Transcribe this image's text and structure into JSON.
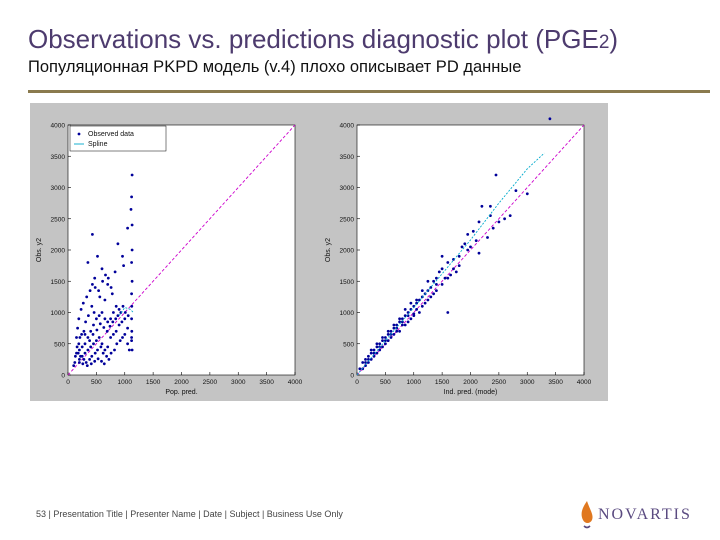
{
  "slide": {
    "title_main": "Observations vs. predictions diagnostic plot (PGE",
    "title_num": "2",
    "title_end": ")",
    "subtitle": "Популяционная PKPD модель (v.4) плохо описывает PD данные",
    "footer": "53 | Presentation Title | Presenter Name | Date | Subject | Business Use Only",
    "logo_text": "NOVARTIS"
  },
  "colors": {
    "points": "#00009a",
    "identity": "#cc00cc",
    "spline": "#00aacc",
    "panel": "#c4c4c4",
    "title": "#4d3b6e",
    "rule": "#8a7a4e",
    "logo": "#5a4a80",
    "logo_flame": "#e07820"
  },
  "chart_data": [
    {
      "type": "scatter",
      "xlabel": "Pop. pred.",
      "ylabel": "Obs. y2",
      "xlim": [
        0,
        4000
      ],
      "ylim": [
        0,
        4000
      ],
      "xticks": [
        0,
        500,
        1000,
        1500,
        2000,
        2500,
        3000,
        3500,
        4000
      ],
      "yticks": [
        0,
        500,
        1000,
        1500,
        2000,
        2500,
        3000,
        3500,
        4000
      ],
      "legend": {
        "position": "top-left",
        "entries": [
          "Observed data",
          "Spline"
        ]
      },
      "identity_line": true,
      "spline": [
        [
          900,
          950
        ],
        [
          1000,
          1080
        ],
        [
          1100,
          1050
        ],
        [
          1150,
          1000
        ]
      ],
      "series": [
        {
          "name": "Observed data",
          "points": [
            [
              430,
              2250
            ],
            [
              1050,
              2350
            ],
            [
              1130,
              3200
            ],
            [
              1120,
              2850
            ],
            [
              1110,
              2650
            ],
            [
              1130,
              2400
            ],
            [
              1130,
              2000
            ],
            [
              1120,
              1800
            ],
            [
              1130,
              1500
            ],
            [
              1120,
              1300
            ],
            [
              1125,
              1100
            ],
            [
              1120,
              900
            ],
            [
              1125,
              700
            ],
            [
              1120,
              550
            ],
            [
              1130,
              400
            ],
            [
              1120,
              600
            ],
            [
              980,
              1750
            ],
            [
              960,
              1900
            ],
            [
              880,
              2100
            ],
            [
              830,
              1650
            ],
            [
              600,
              1700
            ],
            [
              520,
              1900
            ],
            [
              470,
              1550
            ],
            [
              350,
              1800
            ],
            [
              700,
              1450
            ],
            [
              780,
              1300
            ],
            [
              650,
              1200
            ],
            [
              560,
              1250
            ],
            [
              460,
              1000
            ],
            [
              420,
              1100
            ],
            [
              360,
              950
            ],
            [
              310,
              850
            ],
            [
              280,
              700
            ],
            [
              240,
              650
            ],
            [
              210,
              600
            ],
            [
              190,
              500
            ],
            [
              160,
              450
            ],
            [
              150,
              350
            ],
            [
              130,
              300
            ],
            [
              120,
              200
            ],
            [
              100,
              150
            ],
            [
              200,
              250
            ],
            [
              250,
              300
            ],
            [
              300,
              350
            ],
            [
              350,
              400
            ],
            [
              400,
              450
            ],
            [
              450,
              500
            ],
            [
              500,
              550
            ],
            [
              550,
              600
            ],
            [
              600,
              500
            ],
            [
              650,
              400
            ],
            [
              700,
              450
            ],
            [
              750,
              600
            ],
            [
              800,
              650
            ],
            [
              850,
              700
            ],
            [
              900,
              800
            ],
            [
              950,
              850
            ],
            [
              1000,
              900
            ],
            [
              1050,
              750
            ],
            [
              300,
              500
            ],
            [
              350,
              600
            ],
            [
              400,
              700
            ],
            [
              450,
              800
            ],
            [
              500,
              900
            ],
            [
              550,
              950
            ],
            [
              600,
              1000
            ],
            [
              650,
              900
            ],
            [
              700,
              850
            ],
            [
              750,
              900
            ],
            [
              800,
              1000
            ],
            [
              850,
              1100
            ],
            [
              900,
              1050
            ],
            [
              250,
              450
            ],
            [
              200,
              400
            ],
            [
              180,
              350
            ],
            [
              220,
              300
            ],
            [
              280,
              250
            ],
            [
              320,
              200
            ],
            [
              380,
              250
            ],
            [
              420,
              300
            ],
            [
              480,
              350
            ],
            [
              520,
              400
            ],
            [
              580,
              450
            ],
            [
              620,
              350
            ],
            [
              680,
              300
            ],
            [
              720,
              250
            ],
            [
              760,
              350
            ],
            [
              820,
              400
            ],
            [
              860,
              500
            ],
            [
              920,
              550
            ],
            [
              960,
              600
            ],
            [
              1000,
              650
            ],
            [
              1050,
              500
            ],
            [
              1080,
              400
            ],
            [
              150,
              600
            ],
            [
              170,
              750
            ],
            [
              190,
              900
            ],
            [
              230,
              1050
            ],
            [
              270,
              1150
            ],
            [
              330,
              1250
            ],
            [
              390,
              1350
            ],
            [
              430,
              1450
            ],
            [
              480,
              1400
            ],
            [
              540,
              1350
            ],
            [
              610,
              1500
            ],
            [
              660,
              1600
            ],
            [
              710,
              1550
            ],
            [
              760,
              1400
            ],
            [
              200,
              200
            ],
            [
              260,
              180
            ],
            [
              340,
              150
            ],
            [
              410,
              180
            ],
            [
              470,
              220
            ],
            [
              530,
              260
            ],
            [
              590,
              220
            ],
            [
              640,
              180
            ],
            [
              300,
              650
            ],
            [
              380,
              550
            ],
            [
              440,
              650
            ],
            [
              510,
              720
            ],
            [
              570,
              820
            ],
            [
              630,
              760
            ],
            [
              690,
              700
            ],
            [
              740,
              780
            ],
            [
              790,
              850
            ],
            [
              840,
              900
            ],
            [
              880,
              950
            ],
            [
              930,
              1000
            ],
            [
              970,
              1100
            ],
            [
              1010,
              1000
            ],
            [
              1060,
              950
            ]
          ]
        }
      ]
    },
    {
      "type": "scatter",
      "xlabel": "Ind. pred. (mode)",
      "ylabel": "Obs. y2",
      "xlim": [
        0,
        4000
      ],
      "ylim": [
        0,
        4000
      ],
      "xticks": [
        0,
        500,
        1000,
        1500,
        2000,
        2500,
        3000,
        3500,
        4000
      ],
      "yticks": [
        0,
        500,
        1000,
        1500,
        2000,
        2500,
        3000,
        3500,
        4000
      ],
      "identity_line": true,
      "spline": [
        [
          0,
          0
        ],
        [
          500,
          550
        ],
        [
          1000,
          1080
        ],
        [
          1500,
          1620
        ],
        [
          2000,
          2160
        ],
        [
          2500,
          2750
        ],
        [
          3000,
          3300
        ],
        [
          3300,
          3550
        ]
      ],
      "series": [
        {
          "name": "Observed data",
          "points": [
            [
              3400,
              4100
            ],
            [
              2450,
              3200
            ],
            [
              2800,
              2950
            ],
            [
              3000,
              2900
            ],
            [
              2350,
              2700
            ],
            [
              2200,
              2700
            ],
            [
              2350,
              2550
            ],
            [
              2150,
              2450
            ],
            [
              2050,
              2300
            ],
            [
              1950,
              2250
            ],
            [
              1900,
              2100
            ],
            [
              1850,
              2050
            ],
            [
              2150,
              1950
            ],
            [
              1800,
              1900
            ],
            [
              1700,
              1850
            ],
            [
              1600,
              1800
            ],
            [
              1500,
              1700
            ],
            [
              1450,
              1650
            ],
            [
              1400,
              1550
            ],
            [
              1350,
              1500
            ],
            [
              1500,
              1450
            ],
            [
              1300,
              1400
            ],
            [
              1250,
              1350
            ],
            [
              1200,
              1300
            ],
            [
              1150,
              1250
            ],
            [
              1100,
              1200
            ],
            [
              1050,
              1150
            ],
            [
              1000,
              1100
            ],
            [
              950,
              1050
            ],
            [
              900,
              1000
            ],
            [
              850,
              950
            ],
            [
              800,
              900
            ],
            [
              750,
              850
            ],
            [
              700,
              800
            ],
            [
              650,
              750
            ],
            [
              600,
              700
            ],
            [
              550,
              650
            ],
            [
              500,
              600
            ],
            [
              450,
              550
            ],
            [
              400,
              500
            ],
            [
              350,
              450
            ],
            [
              300,
              400
            ],
            [
              250,
              350
            ],
            [
              200,
              300
            ],
            [
              150,
              250
            ],
            [
              100,
              200
            ],
            [
              50,
              100
            ],
            [
              1600,
              1000
            ],
            [
              1500,
              1900
            ],
            [
              1700,
              1700
            ],
            [
              1550,
              1550
            ],
            [
              1250,
              1500
            ],
            [
              1150,
              1350
            ],
            [
              1050,
              1200
            ],
            [
              950,
              1150
            ],
            [
              850,
              1050
            ],
            [
              750,
              900
            ],
            [
              650,
              800
            ],
            [
              550,
              700
            ],
            [
              450,
              600
            ],
            [
              350,
              500
            ],
            [
              250,
              400
            ],
            [
              1000,
              950
            ],
            [
              900,
              850
            ],
            [
              800,
              800
            ],
            [
              700,
              700
            ],
            [
              600,
              600
            ],
            [
              500,
              500
            ],
            [
              400,
              400
            ],
            [
              300,
              300
            ],
            [
              200,
              200
            ],
            [
              100,
              100
            ],
            [
              1100,
              1000
            ],
            [
              1200,
              1150
            ],
            [
              1300,
              1250
            ],
            [
              1400,
              1350
            ],
            [
              1600,
              1550
            ],
            [
              1750,
              1650
            ],
            [
              1800,
              1750
            ],
            [
              2000,
              2050
            ],
            [
              2100,
              2150
            ],
            [
              2300,
              2200
            ],
            [
              2500,
              2450
            ],
            [
              2600,
              2500
            ],
            [
              2700,
              2550
            ],
            [
              2400,
              2350
            ],
            [
              1950,
              2000
            ],
            [
              1650,
              1600
            ],
            [
              1350,
              1300
            ],
            [
              1150,
              1100
            ],
            [
              950,
              900
            ],
            [
              850,
              800
            ],
            [
              750,
              700
            ],
            [
              650,
              650
            ],
            [
              550,
              550
            ],
            [
              450,
              450
            ],
            [
              350,
              350
            ],
            [
              250,
              250
            ],
            [
              150,
              150
            ],
            [
              1400,
              1450
            ],
            [
              1250,
              1200
            ],
            [
              1050,
              1050
            ],
            [
              1000,
              980
            ],
            [
              900,
              950
            ],
            [
              800,
              850
            ],
            [
              700,
              750
            ],
            [
              600,
              650
            ],
            [
              500,
              550
            ],
            [
              400,
              450
            ],
            [
              300,
              350
            ],
            [
              200,
              250
            ],
            [
              150,
              200
            ]
          ]
        }
      ]
    }
  ]
}
